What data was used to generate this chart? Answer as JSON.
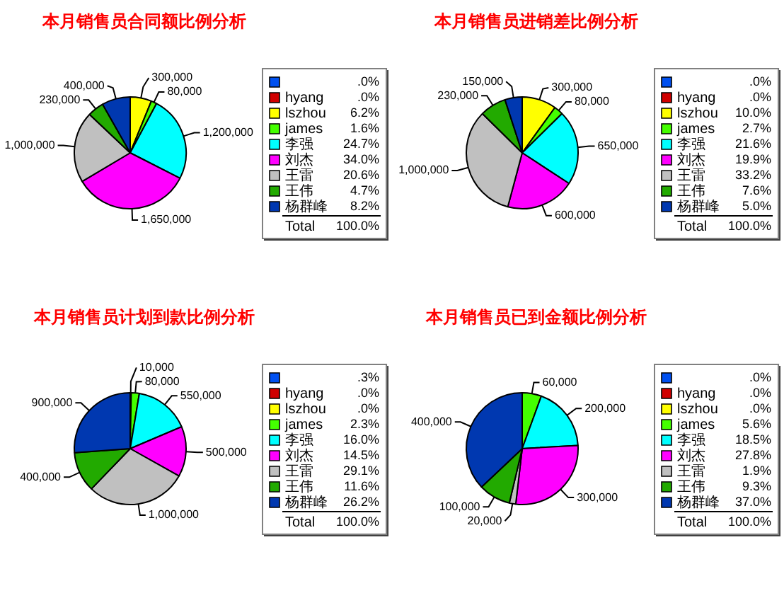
{
  "chart_data": [
    {
      "type": "pie",
      "title": "本月销售员合同额比例分析",
      "categories": [
        null,
        "hyang",
        "lszhou",
        "james",
        "李强",
        "刘杰",
        "王雷",
        "王伟",
        "杨群峰"
      ],
      "values": [
        0,
        0,
        300000,
        80000,
        1200000,
        1650000,
        1000000,
        230000,
        400000
      ],
      "colors": [
        "#0050f0",
        "#d00000",
        "#ffff00",
        "#44ff00",
        "#00ffff",
        "#ff00ff",
        "#c0c0c0",
        "#22aa00",
        "#0038b0"
      ],
      "value_labels": [
        null,
        null,
        "300,000",
        "80,000",
        "1,200,000",
        "1,650,000",
        "1,000,000",
        "230,000",
        "400,000"
      ],
      "legend": "right",
      "annotations": [
        ".0%",
        ".0%",
        "6.2%",
        "1.6%",
        "24.7%",
        "34.0%",
        "20.6%",
        "4.7%",
        "8.2%",
        "Total",
        "100.0%"
      ]
    },
    {
      "type": "pie",
      "title": "本月销售员进销差比例分析",
      "categories": [
        null,
        "hyang",
        "lszhou",
        "james",
        "李强",
        "刘杰",
        "王雷",
        "王伟",
        "杨群峰"
      ],
      "values": [
        0,
        0,
        300000,
        80000,
        650000,
        600000,
        1000000,
        230000,
        150000
      ],
      "colors": [
        "#0050f0",
        "#d00000",
        "#ffff00",
        "#44ff00",
        "#00ffff",
        "#ff00ff",
        "#c0c0c0",
        "#22aa00",
        "#0038b0"
      ],
      "value_labels": [
        null,
        null,
        "300,000",
        "80,000",
        "650,000",
        "600,000",
        "1,000,000",
        "230,000",
        "150,000"
      ],
      "legend": "right",
      "annotations": [
        ".0%",
        ".0%",
        "10.0%",
        "2.7%",
        "21.6%",
        "19.9%",
        "33.2%",
        "7.6%",
        "5.0%",
        "Total",
        "100.0%"
      ]
    },
    {
      "type": "pie",
      "title": "本月销售员计划到款比例分析",
      "categories": [
        null,
        "hyang",
        "lszhou",
        "james",
        "李强",
        "刘杰",
        "王雷",
        "王伟",
        "杨群峰"
      ],
      "values": [
        10000,
        0,
        0,
        80000,
        550000,
        500000,
        1000000,
        400000,
        900000
      ],
      "colors": [
        "#0050f0",
        "#d00000",
        "#ffff00",
        "#44ff00",
        "#00ffff",
        "#ff00ff",
        "#c0c0c0",
        "#22aa00",
        "#0038b0"
      ],
      "value_labels": [
        "10,000",
        null,
        null,
        "80,000",
        "550,000",
        "500,000",
        "1,000,000",
        "400,000",
        "900,000"
      ],
      "legend": "right",
      "annotations": [
        ".3%",
        ".0%",
        ".0%",
        "2.3%",
        "16.0%",
        "14.5%",
        "29.1%",
        "11.6%",
        "26.2%",
        "Total",
        "100.0%"
      ]
    },
    {
      "type": "pie",
      "title": "本月销售员已到金额比例分析",
      "categories": [
        null,
        "hyang",
        "lszhou",
        "james",
        "李强",
        "刘杰",
        "王雷",
        "王伟",
        "杨群峰"
      ],
      "values": [
        0,
        0,
        0,
        60000,
        200000,
        300000,
        20000,
        100000,
        400000
      ],
      "colors": [
        "#0050f0",
        "#d00000",
        "#ffff00",
        "#44ff00",
        "#00ffff",
        "#ff00ff",
        "#c0c0c0",
        "#22aa00",
        "#0038b0"
      ],
      "value_labels": [
        null,
        null,
        null,
        "60,000",
        "200,000",
        "300,000",
        "20,000",
        "100,000",
        "400,000"
      ],
      "legend": "right",
      "annotations": [
        ".0%",
        ".0%",
        ".0%",
        "5.6%",
        "18.5%",
        "27.8%",
        "1.9%",
        "9.3%",
        "37.0%",
        "Total",
        "100.0%"
      ]
    }
  ]
}
